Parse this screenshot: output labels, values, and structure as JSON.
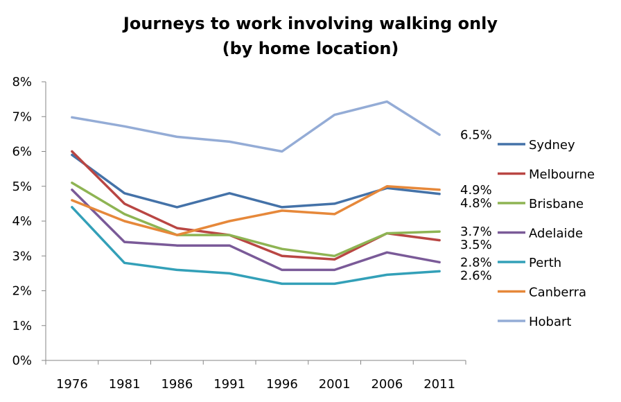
{
  "chart_data": {
    "type": "line",
    "title": "Journeys to work involving walking only",
    "subtitle": "(by home location)",
    "xlabel": "",
    "ylabel": "",
    "categories": [
      "1976",
      "1981",
      "1986",
      "1991",
      "1996",
      "2001",
      "2006",
      "2011"
    ],
    "ylim": [
      0,
      8
    ],
    "y_ticks": [
      "0%",
      "1%",
      "2%",
      "3%",
      "4%",
      "5%",
      "6%",
      "7%",
      "8%"
    ],
    "grid": false,
    "legend_position": "right",
    "series": [
      {
        "name": "Sydney",
        "color": "#4472a8",
        "values": [
          5.9,
          4.8,
          4.4,
          4.8,
          4.4,
          4.5,
          4.95,
          4.78
        ],
        "end_label": "4.8%"
      },
      {
        "name": "Melbourne",
        "color": "#b94643",
        "values": [
          6.0,
          4.5,
          3.8,
          3.6,
          3.0,
          2.9,
          3.65,
          3.45
        ],
        "end_label": "3.5%"
      },
      {
        "name": "Brisbane",
        "color": "#8eb453",
        "values": [
          5.1,
          4.2,
          3.6,
          3.6,
          3.2,
          3.0,
          3.65,
          3.7
        ],
        "end_label": "3.7%"
      },
      {
        "name": "Adelaide",
        "color": "#7a5a98",
        "values": [
          4.9,
          3.4,
          3.3,
          3.3,
          2.6,
          2.6,
          3.1,
          2.82
        ],
        "end_label": "2.8%"
      },
      {
        "name": "Perth",
        "color": "#33a0b8",
        "values": [
          4.4,
          2.8,
          2.6,
          2.5,
          2.2,
          2.2,
          2.46,
          2.56
        ],
        "end_label": "2.6%"
      },
      {
        "name": "Canberra",
        "color": "#e6883a",
        "values": [
          4.6,
          4.0,
          3.6,
          4.0,
          4.3,
          4.2,
          5.0,
          4.9
        ],
        "end_label": "4.9%"
      },
      {
        "name": "Hobart",
        "color": "#94acd6",
        "values": [
          6.98,
          6.72,
          6.42,
          6.28,
          6.0,
          7.05,
          7.43,
          6.48
        ],
        "end_label": "6.5%"
      }
    ]
  }
}
